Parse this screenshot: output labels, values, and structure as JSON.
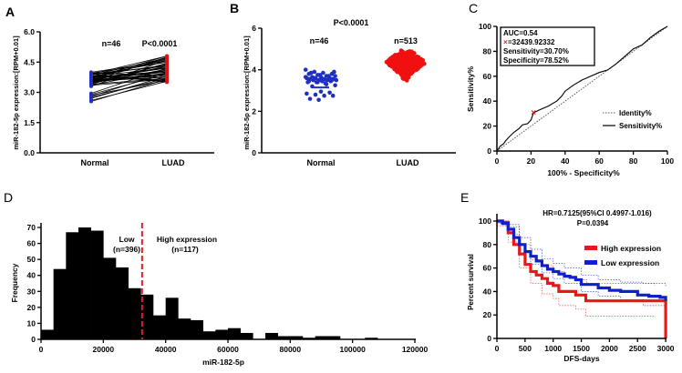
{
  "panel_labels": [
    "A",
    "B",
    "C",
    "D",
    "E"
  ],
  "chart_data": [
    {
      "panel": "A",
      "type": "line",
      "categories": [
        "Normal",
        "LUAD"
      ],
      "ylabel": "miR-182-5p expression:[RPM+0.01]",
      "ylim": [
        0,
        6
      ],
      "y_ticks": [
        "0.0",
        "1.5",
        "3.0",
        "4.5",
        "6.0"
      ],
      "annotations": [
        "n=46",
        "P<0.0001"
      ],
      "colors": {
        "Normal": "#1f2fc0",
        "LUAD": "#e01010"
      },
      "normal": [
        3.9,
        3.85,
        3.8,
        3.95,
        3.7,
        3.75,
        3.6,
        3.65,
        3.55,
        3.5,
        3.45,
        3.4,
        3.35,
        3.9,
        3.8,
        3.7,
        3.6,
        3.5,
        4.0,
        3.95,
        3.85,
        3.75,
        3.65,
        3.55,
        3.45,
        3.4,
        3.35,
        3.3,
        3.9,
        3.8,
        3.7,
        3.6,
        3.5,
        3.85,
        3.75,
        3.65,
        3.55,
        3.45,
        2.95,
        2.9,
        2.85,
        2.8,
        2.75,
        2.7,
        2.6,
        2.55
      ],
      "luad": [
        4.8,
        4.7,
        3.6,
        4.5,
        4.0,
        4.6,
        3.8,
        4.2,
        4.75,
        3.9,
        4.4,
        3.7,
        4.1,
        4.3,
        3.55,
        4.65,
        4.25,
        3.95,
        4.55,
        3.85,
        4.35,
        4.05,
        4.7,
        3.75,
        4.15,
        4.45,
        3.65,
        4.6,
        3.5,
        4.2,
        4.8,
        3.9,
        4.3,
        4.5,
        4.0,
        3.8,
        4.1,
        4.4,
        4.2,
        3.9,
        3.6,
        4.0,
        3.7,
        3.8,
        3.55,
        3.65
      ]
    },
    {
      "panel": "B",
      "type": "scatter",
      "categories": [
        "Normal",
        "LUAD"
      ],
      "ylabel": "miR-182-5p expression:[RPM+0.01]",
      "ylim": [
        0,
        6
      ],
      "y_ticks": [
        "0",
        "2",
        "4",
        "6"
      ],
      "annotations": {
        "p": "P<0.0001",
        "n_normal": "n=46",
        "n_luad": "n=513"
      },
      "colors": {
        "Normal": "#1f2fc0",
        "LUAD": "#f01010"
      },
      "normal_values": [
        4.0,
        3.9,
        3.85,
        3.8,
        3.8,
        3.75,
        3.7,
        3.7,
        3.65,
        3.65,
        3.6,
        3.6,
        3.6,
        3.55,
        3.55,
        3.55,
        3.5,
        3.5,
        3.5,
        3.5,
        3.45,
        3.45,
        3.4,
        3.4,
        3.35,
        3.9,
        3.85,
        3.75,
        3.7,
        3.65,
        3.6,
        3.55,
        3.5,
        3.45,
        3.4,
        3.3,
        3.25,
        3.2,
        2.95,
        2.9,
        2.85,
        2.8,
        2.75,
        2.75,
        2.6,
        2.55
      ],
      "normal_mean": 3.55,
      "normal_error_low": 3.15,
      "luad_summary": {
        "n": 513,
        "center": 4.35,
        "min": 3.45,
        "max": 5.0
      }
    },
    {
      "panel": "C",
      "type": "line",
      "xlabel": "100% - Specificity%",
      "ylabel": "Sensitivity%",
      "xlim": [
        0,
        100
      ],
      "ylim": [
        0,
        100
      ],
      "x_ticks": [
        "0",
        "20",
        "40",
        "60",
        "80",
        "100"
      ],
      "y_ticks": [
        "0",
        "20",
        "40",
        "60",
        "80",
        "100"
      ],
      "info_box": [
        "AUC=0.54",
        "=32439.92332",
        "Sensitivity=30.70%",
        "Specificity=78.52%"
      ],
      "cutoff_marker": "×",
      "cutoff_point": [
        21.48,
        30.7
      ],
      "legend": [
        "Identity%",
        "Sensitivity%"
      ],
      "roc": [
        [
          0,
          0
        ],
        [
          1,
          2
        ],
        [
          2,
          4
        ],
        [
          4,
          6
        ],
        [
          5,
          8
        ],
        [
          7,
          11
        ],
        [
          10,
          15
        ],
        [
          13,
          18
        ],
        [
          15,
          21
        ],
        [
          18,
          22
        ],
        [
          20,
          25
        ],
        [
          21.48,
          30.7
        ],
        [
          25,
          33
        ],
        [
          30,
          36
        ],
        [
          35,
          40
        ],
        [
          38,
          44
        ],
        [
          40,
          48
        ],
        [
          45,
          53
        ],
        [
          50,
          57
        ],
        [
          55,
          60
        ],
        [
          60,
          63
        ],
        [
          65,
          65
        ],
        [
          70,
          70
        ],
        [
          75,
          76
        ],
        [
          80,
          82
        ],
        [
          85,
          85
        ],
        [
          90,
          91
        ],
        [
          95,
          96
        ],
        [
          100,
          100
        ]
      ]
    },
    {
      "panel": "D",
      "type": "bar",
      "xlabel": "miR-182-5p",
      "ylabel": "Frequency",
      "xlim": [
        0,
        120000
      ],
      "ylim": [
        0,
        75
      ],
      "x_ticks": [
        "0",
        "20000",
        "40000",
        "60000",
        "80000",
        "100000",
        "120000"
      ],
      "y_ticks": [
        "0",
        "10",
        "20",
        "30",
        "40",
        "50",
        "60",
        "70"
      ],
      "bin_width": 4000,
      "bin_starts": [
        0,
        4000,
        8000,
        12000,
        16000,
        20000,
        24000,
        28000,
        32000,
        36000,
        40000,
        44000,
        48000,
        52000,
        56000,
        60000,
        64000,
        68000,
        72000,
        76000,
        80000,
        84000,
        88000,
        92000,
        96000,
        100000,
        104000
      ],
      "values": [
        6,
        44,
        67,
        70,
        68,
        51,
        45,
        32,
        28,
        15,
        26,
        13,
        12,
        5,
        6,
        7,
        4,
        0,
        4,
        2,
        2,
        1,
        2,
        2,
        0,
        0,
        1
      ],
      "cutoff": 32439.92,
      "cutoff_color": "#e02020",
      "annotations": {
        "low": "Low",
        "low_n": "(n=396)",
        "high": "High expression",
        "high_n": "(n=117)"
      }
    },
    {
      "panel": "E",
      "type": "line",
      "xlabel": "DFS-days",
      "ylabel": "Percent survival",
      "xlim": [
        0,
        3000
      ],
      "ylim": [
        0,
        100
      ],
      "x_ticks": [
        "0",
        "500",
        "1000",
        "1500",
        "2000",
        "2500",
        "3000"
      ],
      "y_ticks": [
        "0",
        "20",
        "40",
        "60",
        "80",
        "100"
      ],
      "annotations": [
        "HR=0.7125(95%CI 0.4997-1.016)",
        "P=0.0394"
      ],
      "series": [
        {
          "name": "High expression",
          "color": "#e81818",
          "points": [
            [
              0,
              100
            ],
            [
              100,
              99
            ],
            [
              200,
              90
            ],
            [
              300,
              80
            ],
            [
              400,
              72
            ],
            [
              500,
              63
            ],
            [
              600,
              57
            ],
            [
              700,
              54
            ],
            [
              800,
              51
            ],
            [
              900,
              47
            ],
            [
              1000,
              45
            ],
            [
              1100,
              40
            ],
            [
              1300,
              40
            ],
            [
              1400,
              37
            ],
            [
              1560,
              37
            ],
            [
              1580,
              32
            ],
            [
              3000,
              32
            ],
            [
              3000,
              0
            ]
          ],
          "ci_upper": [
            [
              0,
              100
            ],
            [
              200,
              95
            ],
            [
              400,
              80
            ],
            [
              600,
              67
            ],
            [
              800,
              62
            ],
            [
              1000,
              57
            ],
            [
              1200,
              52
            ],
            [
              1400,
              50
            ],
            [
              1600,
              47
            ],
            [
              2000,
              47
            ],
            [
              2800,
              45
            ]
          ],
          "ci_lower": [
            [
              0,
              96
            ],
            [
              200,
              82
            ],
            [
              400,
              60
            ],
            [
              600,
              47
            ],
            [
              800,
              38
            ],
            [
              1000,
              34
            ],
            [
              1100,
              28
            ],
            [
              1400,
              25
            ],
            [
              1580,
              19
            ],
            [
              2800,
              19
            ]
          ]
        },
        {
          "name": "Low expression",
          "color": "#1020c8",
          "points": [
            [
              0,
              100
            ],
            [
              100,
              98
            ],
            [
              200,
              93
            ],
            [
              300,
              86
            ],
            [
              400,
              80
            ],
            [
              500,
              74
            ],
            [
              600,
              70
            ],
            [
              700,
              66
            ],
            [
              800,
              62
            ],
            [
              900,
              59
            ],
            [
              1000,
              57
            ],
            [
              1100,
              55
            ],
            [
              1200,
              53
            ],
            [
              1300,
              52
            ],
            [
              1400,
              50
            ],
            [
              1500,
              46
            ],
            [
              1700,
              46
            ],
            [
              1800,
              43
            ],
            [
              2000,
              41
            ],
            [
              2200,
              40
            ],
            [
              2500,
              37
            ],
            [
              2700,
              36
            ],
            [
              2900,
              35
            ],
            [
              3000,
              32
            ]
          ],
          "ci_upper": [
            [
              0,
              100
            ],
            [
              200,
              97
            ],
            [
              400,
              86
            ],
            [
              600,
              76
            ],
            [
              800,
              68
            ],
            [
              1000,
              64
            ],
            [
              1200,
              60
            ],
            [
              1500,
              54
            ],
            [
              1800,
              50
            ],
            [
              2200,
              48
            ],
            [
              2600,
              47
            ],
            [
              3000,
              44
            ]
          ],
          "ci_lower": [
            [
              0,
              98
            ],
            [
              200,
              89
            ],
            [
              400,
              73
            ],
            [
              600,
              63
            ],
            [
              800,
              56
            ],
            [
              1000,
              51
            ],
            [
              1200,
              47
            ],
            [
              1500,
              40
            ],
            [
              1800,
              36
            ],
            [
              2200,
              33
            ],
            [
              2600,
              28
            ],
            [
              3000,
              20
            ]
          ]
        }
      ]
    }
  ]
}
